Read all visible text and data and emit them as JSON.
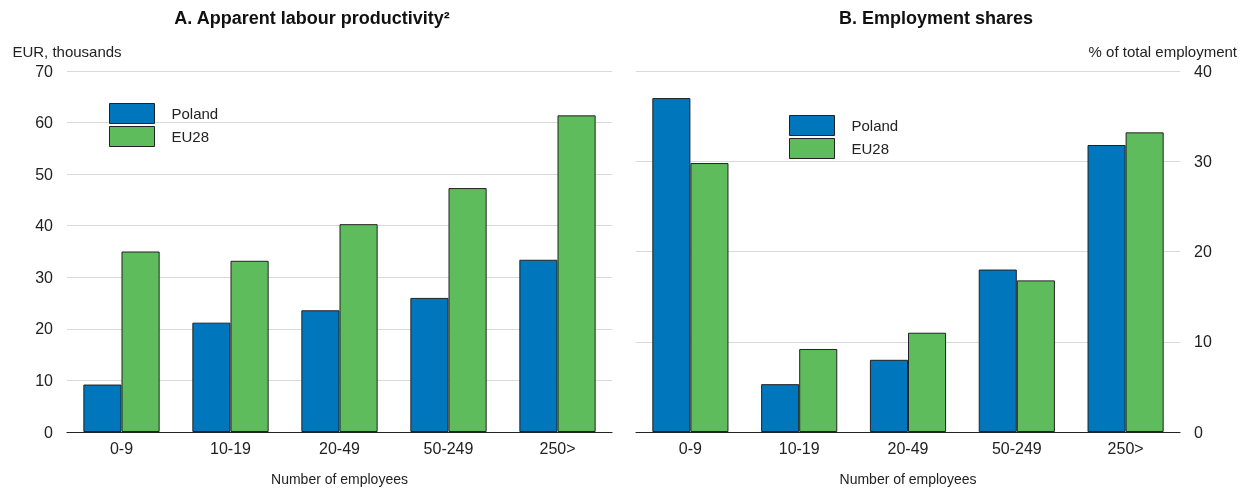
{
  "chart_data": [
    {
      "type": "bar",
      "title": "A. Apparent labour productivity²",
      "ylabel": "EUR, thousands",
      "xlabel": "Number of employees",
      "categories": [
        "0-9",
        "10-19",
        "20-49",
        "50-249",
        "250>"
      ],
      "series": [
        {
          "name": "Poland",
          "color": "#0077bd",
          "values": [
            9.2,
            21.2,
            23.6,
            26.0,
            33.4
          ]
        },
        {
          "name": "EU28",
          "color": "#5ebc5c",
          "values": [
            35.0,
            33.2,
            40.3,
            47.3,
            61.4
          ]
        }
      ],
      "ylim": [
        0,
        70
      ],
      "yticks": [
        0,
        10,
        20,
        30,
        40,
        50,
        60,
        70
      ],
      "grid": "y",
      "legend": "top left"
    },
    {
      "type": "bar",
      "title": "B. Employment shares",
      "y2label": "% of total employment",
      "xlabel": "Number of employees",
      "categories": [
        "0-9",
        "10-19",
        "20-49",
        "50-249",
        "250>"
      ],
      "series": [
        {
          "name": "Poland",
          "color": "#0077bd",
          "values": [
            37.0,
            5.3,
            8.0,
            18.0,
            31.8
          ],
          "axis": "y2"
        },
        {
          "name": "EU28",
          "color": "#5ebc5c",
          "values": [
            29.8,
            9.2,
            11.0,
            16.8,
            33.2
          ],
          "axis": "y2"
        }
      ],
      "y2lim": [
        0,
        40
      ],
      "y2ticks": [
        0,
        10,
        20,
        30,
        40
      ],
      "grid": "y",
      "legend": "top"
    }
  ]
}
